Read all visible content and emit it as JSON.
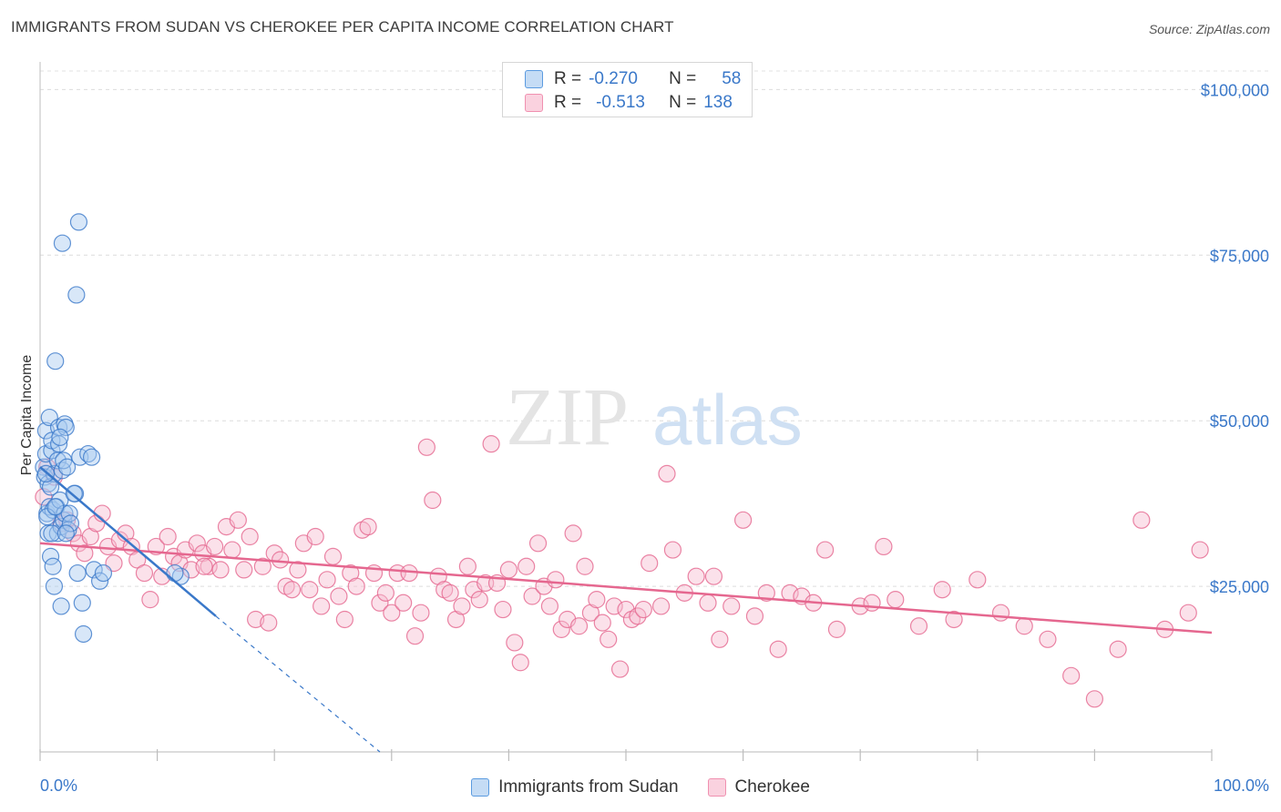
{
  "header": {
    "title": "IMMIGRANTS FROM SUDAN VS CHEROKEE PER CAPITA INCOME CORRELATION CHART",
    "source": "Source: ZipAtlas.com"
  },
  "watermark": {
    "zip": "ZIP",
    "atlas": "atlas"
  },
  "legend": {
    "r_label": "R =",
    "n_label": "N =",
    "rows": [
      {
        "r": "-0.270",
        "n": "58",
        "color": "#5b9be0",
        "fill": "#c5dcf5"
      },
      {
        "r": "-0.513",
        "n": "138",
        "color": "#f090b0",
        "fill": "#fad2df"
      }
    ]
  },
  "bottom_legend": {
    "items": [
      {
        "label": "Immigrants from Sudan"
      },
      {
        "label": "Cherokee"
      }
    ]
  },
  "chart_data": {
    "type": "scatter",
    "title": "IMMIGRANTS FROM SUDAN VS CHEROKEE PER CAPITA INCOME CORRELATION CHART",
    "ylabel": "Per Capita Income",
    "xlabel": "",
    "xlim": [
      0,
      100
    ],
    "ylim": [
      0,
      105000
    ],
    "x_tick_labels": [
      "0.0%",
      "100.0%"
    ],
    "y_ticks": [
      25000,
      50000,
      75000,
      100000
    ],
    "y_tick_labels": [
      "$25,000",
      "$50,000",
      "$75,000",
      "$100,000"
    ],
    "grid": "horizontal dashed",
    "legend_position": "top-center",
    "colors": {
      "sudan": "#3a78c9",
      "sudan_fill": "#a9c9ef",
      "cherokee": "#e5678f",
      "cherokee_fill": "#f7bdd0"
    },
    "series": [
      {
        "name": "Immigrants from Sudan",
        "r": -0.27,
        "n": 58,
        "trend": {
          "x0": 0.0,
          "y0": 43000,
          "x1": 15.0,
          "y1": 20500,
          "dashed_to_x": 29.0,
          "dashed_to_y": 0
        },
        "points": [
          [
            0.3,
            43000
          ],
          [
            0.4,
            41500
          ],
          [
            0.5,
            45000
          ],
          [
            0.5,
            48500
          ],
          [
            0.6,
            36000
          ],
          [
            0.7,
            33000
          ],
          [
            0.7,
            40500
          ],
          [
            0.8,
            37000
          ],
          [
            0.8,
            50500
          ],
          [
            0.9,
            29500
          ],
          [
            1.0,
            45500
          ],
          [
            1.0,
            47000
          ],
          [
            1.1,
            36500
          ],
          [
            1.1,
            28000
          ],
          [
            1.2,
            25000
          ],
          [
            1.2,
            42000
          ],
          [
            1.3,
            59000
          ],
          [
            1.4,
            37000
          ],
          [
            1.5,
            33000
          ],
          [
            1.5,
            44000
          ],
          [
            1.6,
            46500
          ],
          [
            1.6,
            49000
          ],
          [
            1.7,
            38000
          ],
          [
            1.8,
            34000
          ],
          [
            1.8,
            22000
          ],
          [
            1.9,
            42500
          ],
          [
            2.0,
            44000
          ],
          [
            2.0,
            35000
          ],
          [
            2.1,
            36000
          ],
          [
            2.1,
            49500
          ],
          [
            2.2,
            49000
          ],
          [
            2.3,
            43000
          ],
          [
            2.4,
            33500
          ],
          [
            2.5,
            36000
          ],
          [
            1.9,
            76800
          ],
          [
            3.0,
            39000
          ],
          [
            3.1,
            69000
          ],
          [
            3.3,
            80000
          ],
          [
            3.2,
            27000
          ],
          [
            3.4,
            44500
          ],
          [
            3.6,
            22500
          ],
          [
            3.7,
            17800
          ],
          [
            4.1,
            45000
          ],
          [
            4.4,
            44500
          ],
          [
            4.6,
            27500
          ],
          [
            5.1,
            25800
          ],
          [
            5.4,
            27000
          ],
          [
            0.6,
            35500
          ],
          [
            0.9,
            40000
          ],
          [
            1.3,
            37000
          ],
          [
            1.7,
            47500
          ],
          [
            2.6,
            34500
          ],
          [
            2.9,
            39000
          ],
          [
            1.0,
            33000
          ],
          [
            0.5,
            42000
          ],
          [
            2.2,
            33000
          ],
          [
            12.0,
            26500
          ],
          [
            11.5,
            27000
          ]
        ]
      },
      {
        "name": "Cherokee",
        "r": -0.513,
        "n": 138,
        "trend": {
          "x0": 0.0,
          "y0": 31500,
          "x1": 100.0,
          "y1": 18000
        },
        "points": [
          [
            0.3,
            38500
          ],
          [
            0.6,
            43000
          ],
          [
            1.2,
            41500
          ],
          [
            1.8,
            34500
          ],
          [
            2.3,
            35000
          ],
          [
            2.8,
            33000
          ],
          [
            3.3,
            31500
          ],
          [
            3.8,
            30000
          ],
          [
            4.3,
            32500
          ],
          [
            4.8,
            34500
          ],
          [
            5.3,
            36000
          ],
          [
            5.8,
            31000
          ],
          [
            6.3,
            28500
          ],
          [
            6.8,
            32000
          ],
          [
            7.3,
            33000
          ],
          [
            7.8,
            31000
          ],
          [
            8.3,
            29000
          ],
          [
            8.9,
            27000
          ],
          [
            9.4,
            23000
          ],
          [
            9.9,
            31000
          ],
          [
            10.4,
            26500
          ],
          [
            10.9,
            32500
          ],
          [
            11.4,
            29500
          ],
          [
            11.9,
            28500
          ],
          [
            12.4,
            30500
          ],
          [
            12.9,
            27500
          ],
          [
            13.4,
            31500
          ],
          [
            13.9,
            30000
          ],
          [
            14.4,
            28000
          ],
          [
            14.9,
            31000
          ],
          [
            15.4,
            27500
          ],
          [
            15.9,
            34000
          ],
          [
            16.4,
            30500
          ],
          [
            16.9,
            35000
          ],
          [
            17.4,
            27500
          ],
          [
            17.9,
            32500
          ],
          [
            18.4,
            20000
          ],
          [
            19.0,
            28000
          ],
          [
            19.5,
            19500
          ],
          [
            20.0,
            30000
          ],
          [
            20.5,
            29000
          ],
          [
            21.0,
            25000
          ],
          [
            21.5,
            24500
          ],
          [
            22.0,
            27500
          ],
          [
            22.5,
            31500
          ],
          [
            23.0,
            24500
          ],
          [
            23.5,
            32500
          ],
          [
            24.0,
            22000
          ],
          [
            24.5,
            26000
          ],
          [
            25.0,
            29500
          ],
          [
            25.5,
            23500
          ],
          [
            26.0,
            20000
          ],
          [
            26.5,
            27000
          ],
          [
            27.0,
            25000
          ],
          [
            27.5,
            33500
          ],
          [
            28.0,
            34000
          ],
          [
            28.5,
            27000
          ],
          [
            29.0,
            22500
          ],
          [
            29.5,
            24000
          ],
          [
            30.0,
            21000
          ],
          [
            30.5,
            27000
          ],
          [
            31.0,
            22500
          ],
          [
            31.5,
            27000
          ],
          [
            32.0,
            17500
          ],
          [
            32.5,
            21000
          ],
          [
            33.0,
            46000
          ],
          [
            33.5,
            38000
          ],
          [
            34.0,
            26500
          ],
          [
            34.5,
            24500
          ],
          [
            35.0,
            24000
          ],
          [
            35.5,
            20000
          ],
          [
            36.0,
            22000
          ],
          [
            36.5,
            28000
          ],
          [
            37.0,
            24500
          ],
          [
            37.5,
            23000
          ],
          [
            38.0,
            25500
          ],
          [
            38.5,
            46500
          ],
          [
            39.0,
            25500
          ],
          [
            39.5,
            21500
          ],
          [
            40.0,
            27500
          ],
          [
            40.5,
            16500
          ],
          [
            41.0,
            13500
          ],
          [
            41.5,
            28000
          ],
          [
            42.0,
            23500
          ],
          [
            42.5,
            31500
          ],
          [
            43.0,
            25000
          ],
          [
            43.5,
            22000
          ],
          [
            44.0,
            26000
          ],
          [
            44.5,
            18500
          ],
          [
            45.0,
            20000
          ],
          [
            45.5,
            33000
          ],
          [
            46.0,
            19000
          ],
          [
            46.5,
            28000
          ],
          [
            47.0,
            21000
          ],
          [
            47.5,
            23000
          ],
          [
            48.0,
            19500
          ],
          [
            48.5,
            17000
          ],
          [
            49.0,
            22000
          ],
          [
            49.5,
            12500
          ],
          [
            50.0,
            21500
          ],
          [
            50.5,
            20000
          ],
          [
            51.0,
            20500
          ],
          [
            51.5,
            21500
          ],
          [
            52.0,
            28500
          ],
          [
            53.0,
            22000
          ],
          [
            53.5,
            42000
          ],
          [
            54.0,
            30500
          ],
          [
            55.0,
            24000
          ],
          [
            56.0,
            26500
          ],
          [
            57.0,
            22500
          ],
          [
            57.5,
            26500
          ],
          [
            58.0,
            17000
          ],
          [
            59.0,
            22000
          ],
          [
            60.0,
            35000
          ],
          [
            61.0,
            20500
          ],
          [
            62.0,
            24000
          ],
          [
            63.0,
            15500
          ],
          [
            64.0,
            24000
          ],
          [
            65.0,
            23500
          ],
          [
            66.0,
            22500
          ],
          [
            67.0,
            30500
          ],
          [
            68.0,
            18500
          ],
          [
            70.0,
            22000
          ],
          [
            71.0,
            22500
          ],
          [
            72.0,
            31000
          ],
          [
            73.0,
            23000
          ],
          [
            75.0,
            19000
          ],
          [
            77.0,
            24500
          ],
          [
            78.0,
            20000
          ],
          [
            80.0,
            26000
          ],
          [
            82.0,
            21000
          ],
          [
            84.0,
            19000
          ],
          [
            86.0,
            17000
          ],
          [
            88.0,
            11500
          ],
          [
            90.0,
            8000
          ],
          [
            92.0,
            15500
          ],
          [
            94.0,
            35000
          ],
          [
            96.0,
            18500
          ],
          [
            98.0,
            21000
          ],
          [
            99.0,
            30500
          ],
          [
            14.0,
            28000
          ]
        ]
      }
    ]
  }
}
